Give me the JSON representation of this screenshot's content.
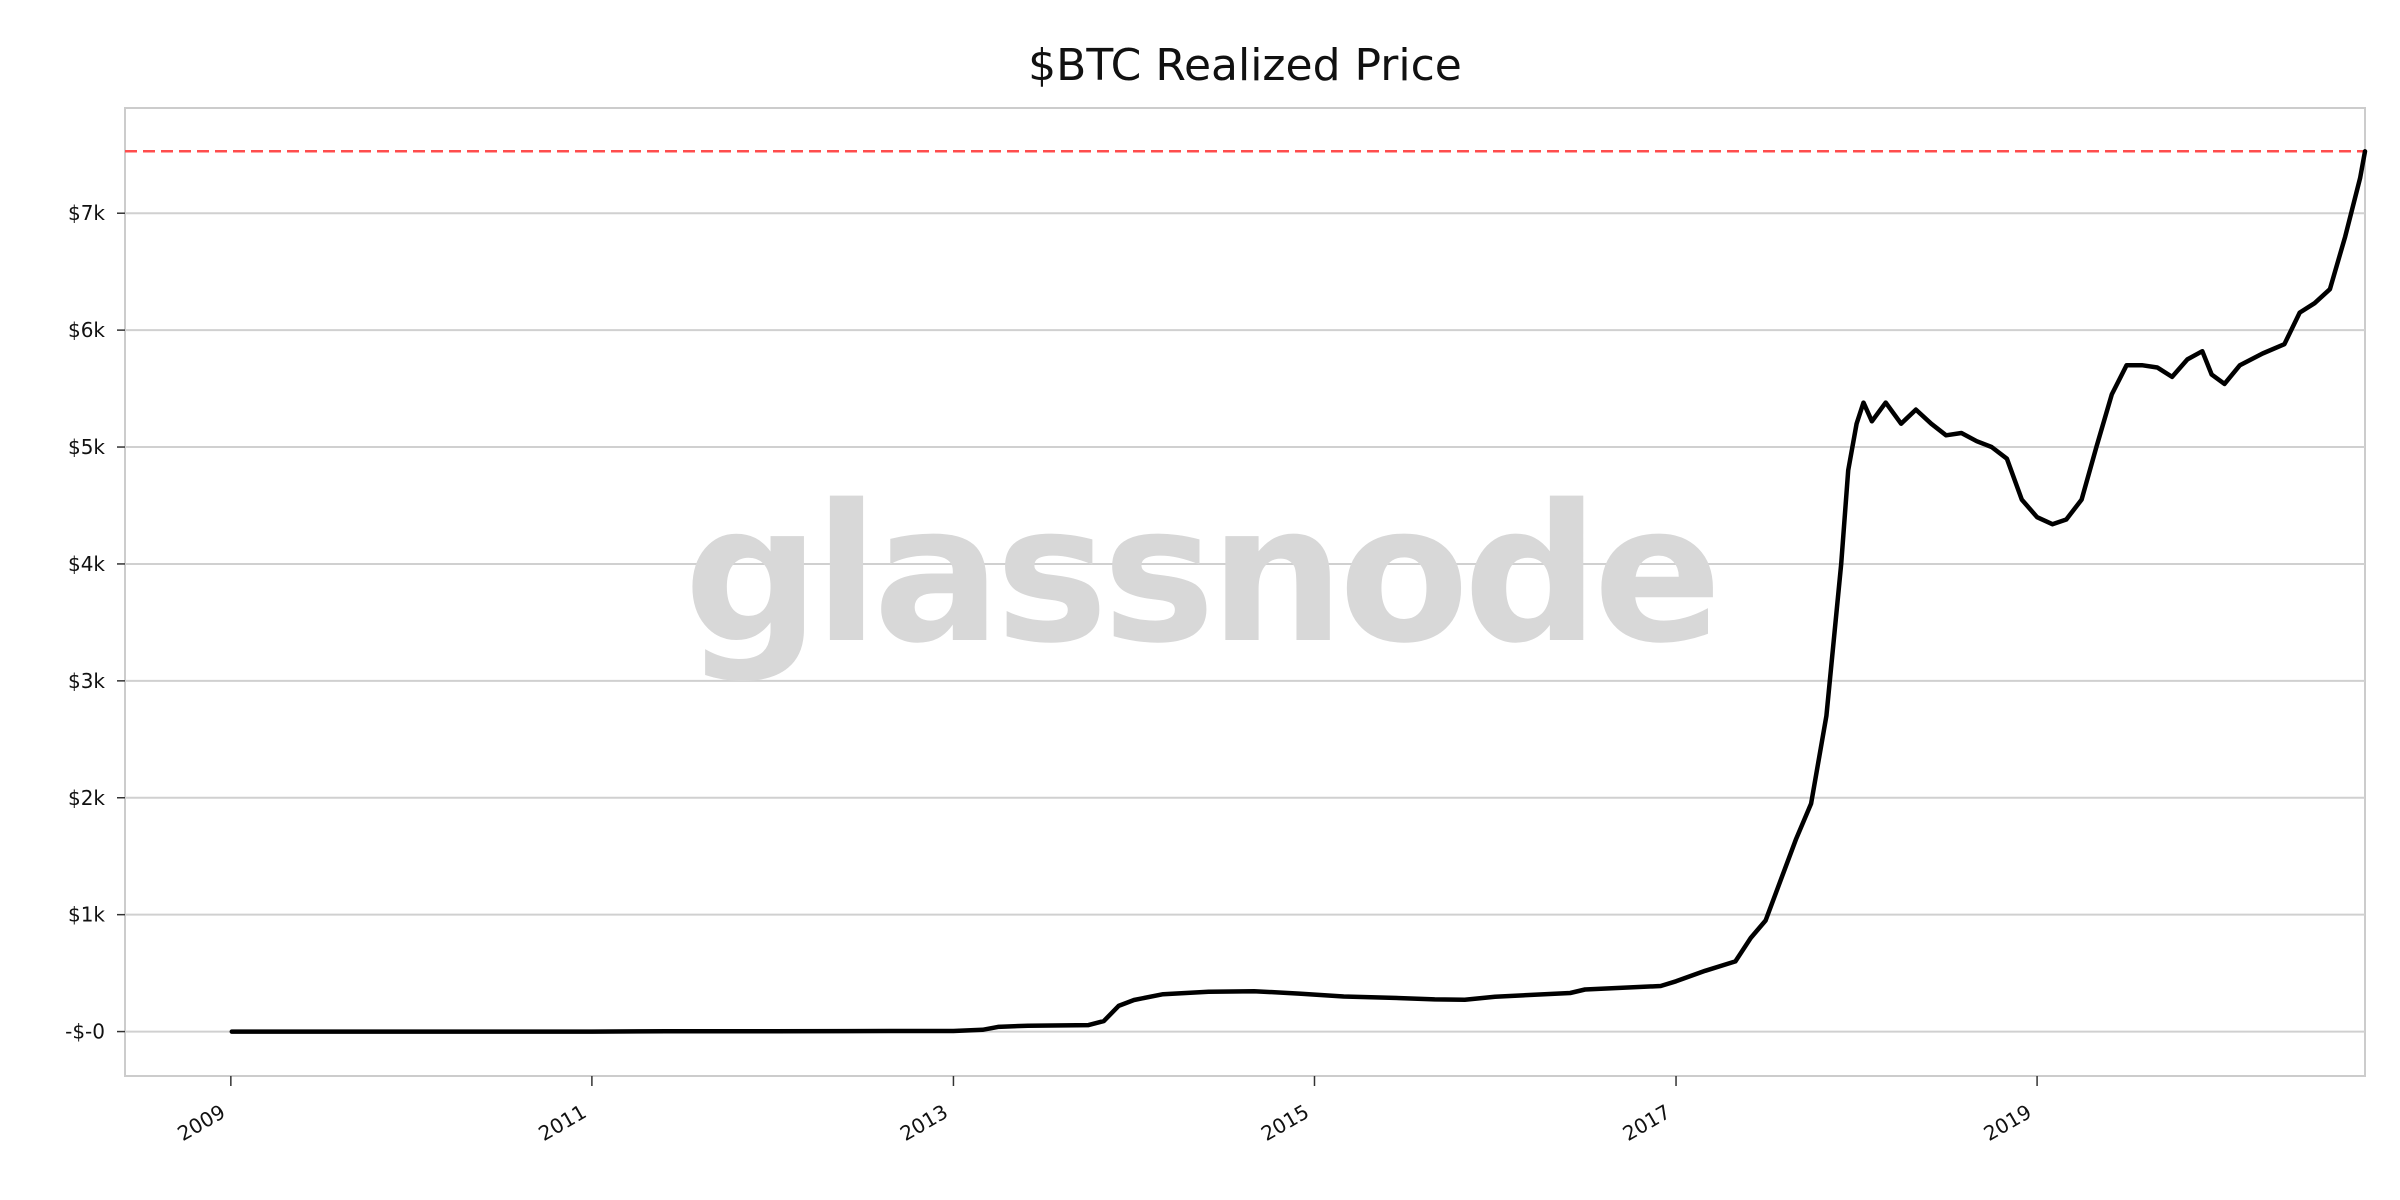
{
  "chart_data": {
    "type": "line",
    "title": "$BTC Realized Price",
    "watermark": "glassnode",
    "xlabel": "",
    "ylabel": "",
    "x_range": [
      "2008-06-01",
      "2020-10-25"
    ],
    "ylim": [
      -380,
      7900
    ],
    "grid": "horizontal",
    "y_ticks": [
      {
        "value": 0,
        "label": "-$-0"
      },
      {
        "value": 1000,
        "label": "$1k"
      },
      {
        "value": 2000,
        "label": "$2k"
      },
      {
        "value": 3000,
        "label": "$3k"
      },
      {
        "value": 4000,
        "label": "$4k"
      },
      {
        "value": 5000,
        "label": "$5k"
      },
      {
        "value": 6000,
        "label": "$6k"
      },
      {
        "value": 7000,
        "label": "$7k"
      }
    ],
    "x_ticks": [
      {
        "value": "2009-01-01",
        "label": "2009"
      },
      {
        "value": "2011-01-01",
        "label": "2011"
      },
      {
        "value": "2013-01-01",
        "label": "2013"
      },
      {
        "value": "2015-01-01",
        "label": "2015"
      },
      {
        "value": "2017-01-01",
        "label": "2017"
      },
      {
        "value": "2019-01-01",
        "label": "2019"
      }
    ],
    "reference_line": {
      "value": 7530,
      "color": "#ff4d4d",
      "style": "dashed"
    },
    "series": [
      {
        "color": "#000000",
        "points": [
          [
            "2009-01-03",
            0
          ],
          [
            "2010-01-01",
            0
          ],
          [
            "2011-01-01",
            0
          ],
          [
            "2011-06-01",
            2
          ],
          [
            "2012-01-01",
            3
          ],
          [
            "2012-06-01",
            4
          ],
          [
            "2013-01-01",
            5
          ],
          [
            "2013-03-01",
            15
          ],
          [
            "2013-04-01",
            40
          ],
          [
            "2013-06-01",
            50
          ],
          [
            "2013-10-01",
            55
          ],
          [
            "2013-11-01",
            90
          ],
          [
            "2013-12-01",
            220
          ],
          [
            "2014-01-01",
            270
          ],
          [
            "2014-03-01",
            320
          ],
          [
            "2014-06-01",
            340
          ],
          [
            "2014-09-01",
            345
          ],
          [
            "2014-12-01",
            325
          ],
          [
            "2015-03-01",
            300
          ],
          [
            "2015-06-01",
            290
          ],
          [
            "2015-09-01",
            275
          ],
          [
            "2015-11-01",
            272
          ],
          [
            "2016-01-01",
            298
          ],
          [
            "2016-06-01",
            330
          ],
          [
            "2016-07-01",
            360
          ],
          [
            "2016-12-01",
            390
          ],
          [
            "2017-01-01",
            430
          ],
          [
            "2017-03-01",
            520
          ],
          [
            "2017-05-01",
            600
          ],
          [
            "2017-06-01",
            800
          ],
          [
            "2017-07-01",
            950
          ],
          [
            "2017-08-01",
            1300
          ],
          [
            "2017-09-01",
            1650
          ],
          [
            "2017-10-01",
            1950
          ],
          [
            "2017-11-01",
            2700
          ],
          [
            "2017-12-01",
            4000
          ],
          [
            "2017-12-15",
            4800
          ],
          [
            "2018-01-01",
            5200
          ],
          [
            "2018-01-15",
            5380
          ],
          [
            "2018-02-01",
            5220
          ],
          [
            "2018-03-01",
            5380
          ],
          [
            "2018-04-01",
            5200
          ],
          [
            "2018-05-01",
            5320
          ],
          [
            "2018-06-01",
            5200
          ],
          [
            "2018-07-01",
            5100
          ],
          [
            "2018-08-01",
            5120
          ],
          [
            "2018-09-01",
            5050
          ],
          [
            "2018-10-01",
            5000
          ],
          [
            "2018-11-01",
            4900
          ],
          [
            "2018-12-01",
            4550
          ],
          [
            "2019-01-01",
            4400
          ],
          [
            "2019-02-01",
            4340
          ],
          [
            "2019-03-01",
            4380
          ],
          [
            "2019-04-01",
            4550
          ],
          [
            "2019-05-01",
            5000
          ],
          [
            "2019-06-01",
            5450
          ],
          [
            "2019-07-01",
            5700
          ],
          [
            "2019-08-01",
            5700
          ],
          [
            "2019-09-01",
            5680
          ],
          [
            "2019-10-01",
            5600
          ],
          [
            "2019-11-01",
            5750
          ],
          [
            "2019-12-01",
            5820
          ],
          [
            "2019-12-20",
            5620
          ],
          [
            "2020-01-15",
            5540
          ],
          [
            "2020-02-15",
            5700
          ],
          [
            "2020-04-01",
            5800
          ],
          [
            "2020-05-15",
            5880
          ],
          [
            "2020-06-15",
            6150
          ],
          [
            "2020-07-15",
            6230
          ],
          [
            "2020-08-15",
            6350
          ],
          [
            "2020-09-15",
            6800
          ],
          [
            "2020-10-15",
            7300
          ],
          [
            "2020-10-25",
            7530
          ]
        ]
      }
    ]
  }
}
